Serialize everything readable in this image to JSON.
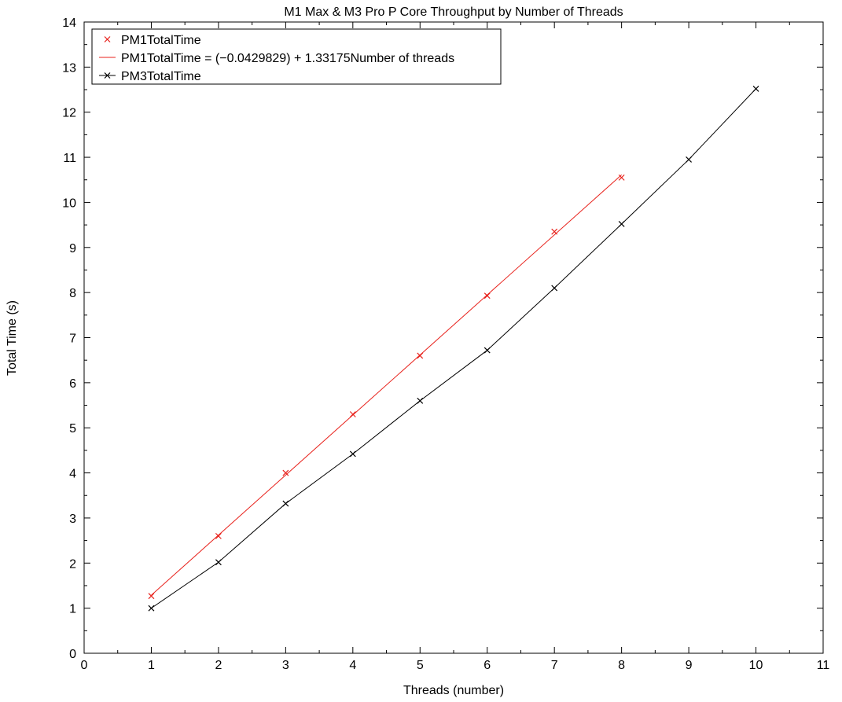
{
  "chart_data": {
    "type": "scatter",
    "title": "M1 Max & M3 Pro P Core Throughput by Number of Threads",
    "xlabel": "Threads (number)",
    "ylabel": "Total Time (s)",
    "xlim": [
      0,
      11
    ],
    "ylim": [
      0,
      14
    ],
    "xticks": [
      "0",
      "1",
      "2",
      "3",
      "4",
      "5",
      "6",
      "7",
      "8",
      "9",
      "10",
      "11"
    ],
    "yticks": [
      "0",
      "1",
      "2",
      "3",
      "4",
      "5",
      "6",
      "7",
      "8",
      "9",
      "10",
      "11",
      "12",
      "13",
      "14"
    ],
    "grid": false,
    "legend_position": "top-left",
    "series": [
      {
        "name": "PM1TotalTime",
        "color": "#e8211b",
        "style": "markers",
        "x": [
          1,
          2,
          3,
          4,
          5,
          6,
          7,
          8
        ],
        "y": [
          1.27,
          2.6,
          4.0,
          5.3,
          6.6,
          7.93,
          9.35,
          10.55
        ]
      },
      {
        "name": "PM1TotalTime = (−0.0429829) + 1.33175Number of threads",
        "color": "#e8211b",
        "style": "line",
        "intercept": -0.0429829,
        "slope": 1.33175,
        "x_range": [
          1,
          8
        ]
      },
      {
        "name": "PM3TotalTime",
        "color": "#000000",
        "style": "line-markers",
        "x": [
          1,
          2,
          3,
          4,
          5,
          6,
          7,
          8,
          9,
          10
        ],
        "y": [
          1.0,
          2.02,
          3.32,
          4.42,
          5.6,
          6.72,
          8.1,
          9.52,
          10.95,
          12.52
        ]
      }
    ]
  }
}
